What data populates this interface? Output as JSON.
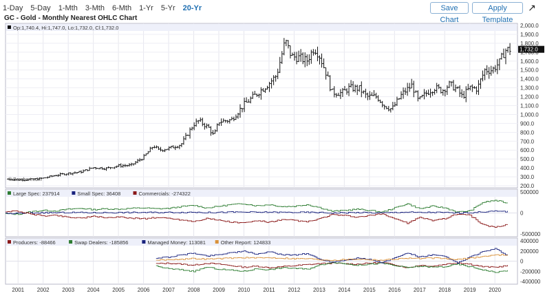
{
  "toolbar": {
    "periods": [
      "1-Day",
      "5-Day",
      "1-Mth",
      "3-Mth",
      "6-Mth",
      "1-Yr",
      "5-Yr",
      "20-Yr"
    ],
    "active_period": "20-Yr",
    "save_label": "Save Chart",
    "template_label": "Apply Template",
    "expand_icon": "expand-arrow-icon"
  },
  "chart_title": "GC - Gold - Monthly Nearest OHLC Chart",
  "chart_data": {
    "price": {
      "type": "ohlc",
      "legend": "Op:1,740.4, Hi:1,747.0, Lo:1,732.0, Cl:1,732.0",
      "last_value_label": "1,732.0",
      "watermark": "© Barchart.com",
      "ylim": [
        200,
        2000
      ],
      "yticks": [
        "200.0",
        "300.0",
        "400.0",
        "500.0",
        "600.0",
        "700.0",
        "800.0",
        "900.0",
        "1,000.0",
        "1,100.0",
        "1,200.0",
        "1,300.0",
        "1,400.0",
        "1,500.0",
        "1,600.0",
        "1,700.0",
        "1,800.0",
        "1,900.0",
        "2,000.0"
      ],
      "x": [
        2000.6,
        2001.0,
        2001.5,
        2002.0,
        2002.5,
        2003.0,
        2003.5,
        2004.0,
        2004.5,
        2005.0,
        2005.5,
        2006.0,
        2006.4,
        2006.6,
        2007.0,
        2007.5,
        2008.0,
        2008.2,
        2008.6,
        2008.8,
        2009.0,
        2009.5,
        2010.0,
        2010.5,
        2011.0,
        2011.3,
        2011.65,
        2011.9,
        2012.2,
        2012.5,
        2012.8,
        2013.0,
        2013.3,
        2013.5,
        2013.9,
        2014.2,
        2014.6,
        2014.9,
        2015.3,
        2015.6,
        2015.9,
        2016.3,
        2016.7,
        2016.95,
        2017.3,
        2017.6,
        2017.9,
        2018.2,
        2018.5,
        2018.7,
        2019.0,
        2019.3,
        2019.6,
        2019.9,
        2020.2,
        2020.4,
        2020.6
      ],
      "close": [
        275,
        268,
        270,
        285,
        318,
        340,
        355,
        405,
        395,
        425,
        430,
        520,
        650,
        600,
        620,
        665,
        890,
        930,
        850,
        760,
        920,
        940,
        1110,
        1230,
        1350,
        1440,
        1830,
        1650,
        1640,
        1600,
        1750,
        1670,
        1450,
        1250,
        1240,
        1300,
        1290,
        1200,
        1200,
        1100,
        1060,
        1230,
        1330,
        1150,
        1250,
        1300,
        1270,
        1340,
        1280,
        1200,
        1300,
        1290,
        1500,
        1500,
        1590,
        1720,
        1732
      ]
    },
    "cot1": {
      "type": "step-line",
      "legend": [
        {
          "name": "Large Spec: 237914",
          "color": "#2e7d32"
        },
        {
          "name": "Small Spec: 36408",
          "color": "#1a237e"
        },
        {
          "name": "Commercials: -274322",
          "color": "#8b1a1a"
        }
      ],
      "ylim": [
        -500000,
        500000
      ],
      "yticks": [
        "500000",
        "0",
        "-500000"
      ],
      "x": [
        2000.5,
        2001.0,
        2001.5,
        2002.0,
        2002.5,
        2003.0,
        2003.5,
        2004.0,
        2004.5,
        2005.0,
        2005.5,
        2006.0,
        2006.5,
        2007.0,
        2007.5,
        2008.0,
        2008.5,
        2009.0,
        2009.5,
        2010.0,
        2010.5,
        2011.0,
        2011.5,
        2012.0,
        2012.5,
        2013.0,
        2013.5,
        2014.0,
        2014.5,
        2015.0,
        2015.5,
        2016.0,
        2016.5,
        2017.0,
        2017.5,
        2018.0,
        2018.5,
        2019.0,
        2019.5,
        2020.0,
        2020.5
      ],
      "series": [
        {
          "name": "Large Spec",
          "color": "#2e7d32",
          "values": [
            -20000,
            -30000,
            30000,
            60000,
            50000,
            90000,
            110000,
            80000,
            100000,
            90000,
            110000,
            120000,
            100000,
            110000,
            150000,
            180000,
            120000,
            160000,
            200000,
            220000,
            170000,
            200000,
            150000,
            160000,
            200000,
            130000,
            40000,
            60000,
            90000,
            60000,
            20000,
            120000,
            220000,
            100000,
            160000,
            120000,
            20000,
            50000,
            250000,
            300000,
            238000
          ]
        },
        {
          "name": "Small Spec",
          "color": "#1a237e",
          "values": [
            -15000,
            -10000,
            0,
            5000,
            5000,
            10000,
            10000,
            5000,
            10000,
            10000,
            10000,
            15000,
            10000,
            15000,
            15000,
            20000,
            10000,
            15000,
            20000,
            20000,
            15000,
            20000,
            15000,
            15000,
            15000,
            10000,
            0,
            5000,
            10000,
            5000,
            0,
            15000,
            20000,
            10000,
            15000,
            10000,
            0,
            5000,
            30000,
            40000,
            36000
          ]
        },
        {
          "name": "Commercials",
          "color": "#8b1a1a",
          "values": [
            35000,
            40000,
            -30000,
            -65000,
            -55000,
            -100000,
            -120000,
            -85000,
            -110000,
            -100000,
            -120000,
            -135000,
            -110000,
            -125000,
            -165000,
            -200000,
            -130000,
            -175000,
            -220000,
            -240000,
            -185000,
            -220000,
            -165000,
            -175000,
            -215000,
            -140000,
            -40000,
            -65000,
            -100000,
            -65000,
            -20000,
            -135000,
            -240000,
            -110000,
            -175000,
            -130000,
            -20000,
            -55000,
            -280000,
            -340000,
            -274000
          ]
        }
      ]
    },
    "cot2": {
      "type": "step-line",
      "legend": [
        {
          "name": "Producers: -88466",
          "color": "#8b1a1a"
        },
        {
          "name": "Swap Dealers: -185856",
          "color": "#2e7d32"
        },
        {
          "name": "Managed Money: 113081",
          "color": "#1a237e"
        },
        {
          "name": "Other Report: 124833",
          "color": "#d9923b"
        }
      ],
      "ylim": [
        -400000,
        400000
      ],
      "yticks": [
        "400000",
        "200000",
        "0",
        "-200000",
        "-400000"
      ],
      "x": [
        2006.5,
        2007.0,
        2007.5,
        2008.0,
        2008.5,
        2009.0,
        2009.5,
        2010.0,
        2010.5,
        2011.0,
        2011.5,
        2012.0,
        2012.5,
        2013.0,
        2013.5,
        2014.0,
        2014.5,
        2015.0,
        2015.5,
        2016.0,
        2016.5,
        2017.0,
        2017.5,
        2018.0,
        2018.5,
        2019.0,
        2019.5,
        2020.0,
        2020.5
      ],
      "series": [
        {
          "name": "Producers",
          "color": "#8b1a1a",
          "values": [
            -50000,
            -40000,
            -60000,
            -80000,
            -40000,
            -60000,
            -90000,
            -120000,
            -100000,
            -130000,
            -110000,
            -90000,
            -70000,
            -50000,
            -40000,
            -50000,
            -60000,
            -40000,
            -30000,
            -70000,
            -130000,
            -80000,
            -100000,
            -60000,
            -30000,
            -60000,
            -110000,
            -120000,
            -88000
          ]
        },
        {
          "name": "Swap Dealers",
          "color": "#2e7d32",
          "values": [
            -100000,
            -150000,
            -170000,
            -200000,
            -120000,
            -160000,
            -180000,
            -200000,
            -150000,
            -170000,
            -130000,
            -140000,
            -160000,
            -80000,
            -20000,
            -50000,
            -80000,
            -60000,
            -40000,
            -90000,
            -130000,
            -100000,
            -120000,
            -110000,
            -60000,
            -110000,
            -170000,
            -220000,
            -186000
          ]
        },
        {
          "name": "Managed Money",
          "color": "#1a237e",
          "values": [
            60000,
            80000,
            120000,
            160000,
            100000,
            130000,
            170000,
            190000,
            140000,
            180000,
            130000,
            120000,
            150000,
            40000,
            -20000,
            20000,
            60000,
            30000,
            -30000,
            60000,
            160000,
            80000,
            120000,
            90000,
            -40000,
            80000,
            180000,
            240000,
            113000
          ]
        },
        {
          "name": "Other Report",
          "color": "#d9923b",
          "values": [
            20000,
            30000,
            40000,
            50000,
            40000,
            50000,
            60000,
            70000,
            60000,
            70000,
            60000,
            50000,
            50000,
            30000,
            20000,
            30000,
            40000,
            30000,
            20000,
            40000,
            60000,
            50000,
            60000,
            50000,
            30000,
            60000,
            90000,
            120000,
            125000
          ]
        }
      ]
    },
    "xaxis": {
      "range": [
        2000.5,
        2020.9
      ],
      "ticks": [
        "2001",
        "2002",
        "2003",
        "2004",
        "2005",
        "2006",
        "2007",
        "2008",
        "2009",
        "2010",
        "2011",
        "2012",
        "2013",
        "2014",
        "2015",
        "2016",
        "2017",
        "2018",
        "2019",
        "2020"
      ]
    }
  }
}
